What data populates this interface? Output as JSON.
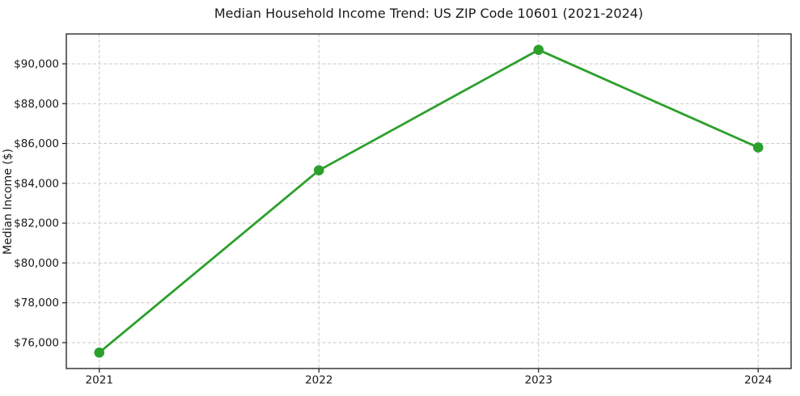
{
  "figure": {
    "background": "#ffffff",
    "frame_color": "#1a1a1a",
    "text_color": "#1a1a1a"
  },
  "chart_data": {
    "type": "line",
    "title": "Median Household Income Trend: US ZIP Code 10601 (2021-2024)",
    "xlabel": "",
    "ylabel": "Median Income ($)",
    "categories": [
      2021,
      2022,
      2023,
      2024
    ],
    "x_tick_labels": [
      "2021",
      "2022",
      "2023",
      "2024"
    ],
    "series": [
      {
        "name": "Median Household Income",
        "values": [
          75500,
          84650,
          90700,
          85800
        ],
        "color": "#2ca02c",
        "marker": "circle",
        "line_width": 2.8,
        "marker_radius": 6.3
      }
    ],
    "y_ticks": [
      {
        "value": 76000,
        "label": "$76,000"
      },
      {
        "value": 78000,
        "label": "$78,000"
      },
      {
        "value": 80000,
        "label": "$80,000"
      },
      {
        "value": 82000,
        "label": "$82,000"
      },
      {
        "value": 84000,
        "label": "$84,000"
      },
      {
        "value": 86000,
        "label": "$86,000"
      },
      {
        "value": 88000,
        "label": "$88,000"
      },
      {
        "value": 90000,
        "label": "$90,000"
      }
    ],
    "xlim": [
      2020.85,
      2024.15
    ],
    "ylim": [
      74700,
      91500
    ],
    "grid": {
      "visible": true,
      "style": "dashed",
      "color": "#c9c9c9"
    },
    "legend": "none"
  }
}
